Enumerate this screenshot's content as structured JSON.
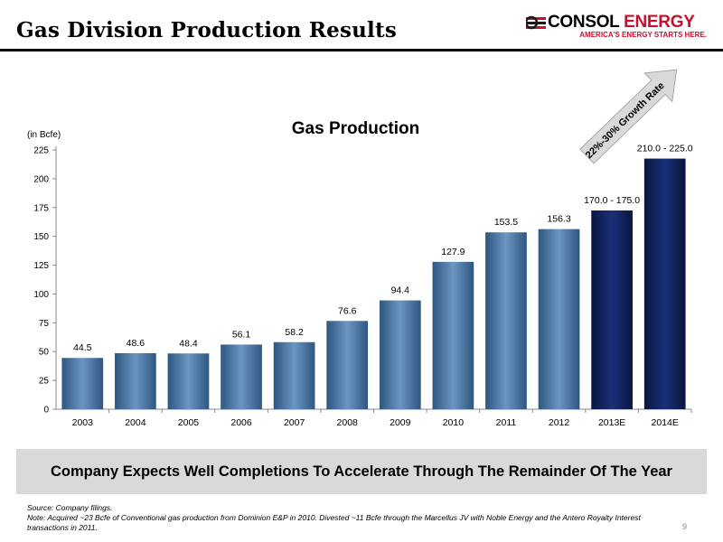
{
  "slide": {
    "title": "Gas Division Production Results",
    "page_number": "9"
  },
  "logo": {
    "name_part1": "CONSOL",
    "name_part2": "ENERGY",
    "tagline": "AMERICA'S ENERGY STARTS HERE.",
    "brand_color": "#c8102e"
  },
  "chart_data": {
    "type": "bar",
    "title": "Gas Production",
    "ylabel": "(in Bcfe)",
    "xlabel": "",
    "categories": [
      "2003",
      "2004",
      "2005",
      "2006",
      "2007",
      "2008",
      "2009",
      "2010",
      "2011",
      "2012",
      "2013E",
      "2014E"
    ],
    "values": [
      44.5,
      48.6,
      48.4,
      56.1,
      58.2,
      76.6,
      94.4,
      127.9,
      153.5,
      156.3,
      172.5,
      217.5
    ],
    "data_labels": [
      "44.5",
      "48.6",
      "48.4",
      "56.1",
      "58.2",
      "76.6",
      "94.4",
      "127.9",
      "153.5",
      "156.3",
      "170.0 - 175.0",
      "210.0 - 225.0"
    ],
    "estimated": [
      false,
      false,
      false,
      false,
      false,
      false,
      false,
      false,
      false,
      false,
      true,
      true
    ],
    "ylim": [
      0,
      225
    ],
    "yticks": [
      0,
      25,
      50,
      75,
      100,
      125,
      150,
      175,
      200,
      225
    ],
    "grid": false,
    "colors": {
      "actual": "#4f7ba8",
      "actual_dark": "#2b4f77",
      "estimate": "#0c1f5c",
      "estimate_dark": "#081640"
    },
    "annotation": {
      "text": "22%-30% Growth Rate",
      "arrow_color": "#d9d9d9"
    }
  },
  "banner": {
    "text": "Company Expects Well Completions To Accelerate Through The Remainder Of The Year"
  },
  "footnotes": {
    "source": "Source:  Company filings.",
    "note": "Note:  Acquired ~23 Bcfe of Conventional gas production from Dominion E&P in 2010. Divested ~11 Bcfe through the Marcellus JV with Noble Energy and the Antero Royalty Interest transactions in 2011."
  }
}
